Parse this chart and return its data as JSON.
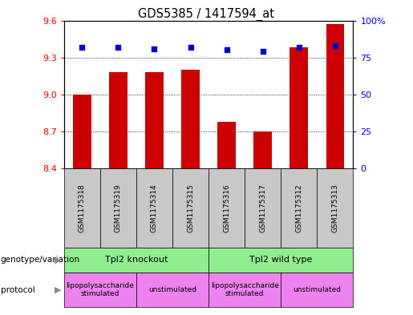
{
  "title": "GDS5385 / 1417594_at",
  "samples": [
    "GSM1175318",
    "GSM1175319",
    "GSM1175314",
    "GSM1175315",
    "GSM1175316",
    "GSM1175317",
    "GSM1175312",
    "GSM1175313"
  ],
  "transformed_count": [
    9.0,
    9.18,
    9.18,
    9.2,
    8.78,
    8.7,
    9.38,
    9.57
  ],
  "percentile_rank": [
    82,
    82,
    81,
    82,
    80,
    79,
    82,
    83
  ],
  "ylim_left": [
    8.4,
    9.6
  ],
  "ylim_right": [
    0,
    100
  ],
  "yticks_left": [
    8.4,
    8.7,
    9.0,
    9.3,
    9.6
  ],
  "yticks_right": [
    0,
    25,
    50,
    75,
    100
  ],
  "bar_color": "#cc0000",
  "dot_color": "#0000cc",
  "sample_box_color": "#c8c8c8",
  "genotype_color": "#90ee90",
  "protocol_color": "#ee82ee",
  "genotypes": [
    {
      "label": "Tpl2 knockout",
      "start": 0,
      "end": 4
    },
    {
      "label": "Tpl2 wild type",
      "start": 4,
      "end": 8
    }
  ],
  "protocols": [
    {
      "label": "lipopolysaccharide\nstimulated",
      "start": 0,
      "end": 2
    },
    {
      "label": "unstimulated",
      "start": 2,
      "end": 4
    },
    {
      "label": "lipopolysaccharide\nstimulated",
      "start": 4,
      "end": 6
    },
    {
      "label": "unstimulated",
      "start": 6,
      "end": 8
    }
  ]
}
